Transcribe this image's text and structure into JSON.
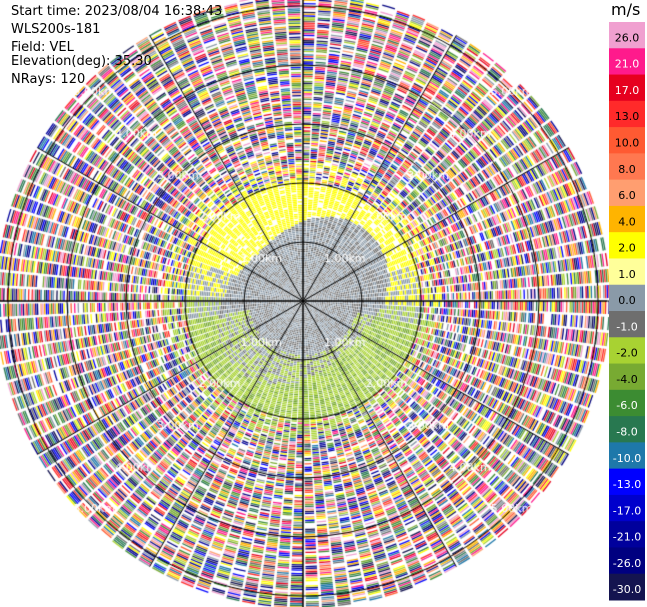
{
  "header": {
    "start_time": "Start time: 2023/08/04 16:38:43",
    "instrument": "WLS200s-181",
    "field": "Field: VEL",
    "elevation": "Elevation(deg): 35.30",
    "nrays": "NRays: 120"
  },
  "colorbar": {
    "unit": "m/s",
    "ticks": [
      "26.0",
      "21.0",
      "17.0",
      "13.0",
      "10.0",
      "8.0",
      "6.0",
      "4.0",
      "2.0",
      "1.0",
      "0.0",
      "-1.0",
      "-2.0",
      "-4.0",
      "-6.0",
      "-8.0",
      "-10.0",
      "-13.0",
      "-17.0",
      "-21.0",
      "-26.0",
      "-30.0"
    ],
    "colors": [
      "#f0a0d0",
      "#ff1a8c",
      "#e6001f",
      "#ff2a2a",
      "#ff5a32",
      "#ff7850",
      "#ff9e70",
      "#ffb400",
      "#ffff00",
      "#ffff9a",
      "#8a9aa8",
      "#6e6e6e",
      "#a8d232",
      "#78aa32",
      "#3c8c32",
      "#287850",
      "#1e78aa",
      "#0000ff",
      "#0000cc",
      "#00009c",
      "#000080",
      "#141450"
    ]
  },
  "chart_data": {
    "type": "ppi",
    "field": "VEL",
    "unit": "m/s",
    "nrays": 120,
    "elevation_deg": 35.3,
    "range_rings_km": [
      1.0,
      2.0,
      3.0,
      4.0,
      5.0
    ],
    "ring_labels": {
      "r1": "1.00km",
      "r2": "2.00km",
      "r3": "3.00km",
      "r4": "4.00km",
      "r5": "5.00km"
    },
    "velocity_scale": [
      -30.0,
      26.0
    ],
    "regions": [
      {
        "range_km": [
          0.0,
          0.9
        ],
        "description_value": "0.0 to -1.0"
      },
      {
        "range_km": [
          0.9,
          2.0
        ],
        "north_value": 2.0,
        "south_value": -2.0
      },
      {
        "range_km": [
          2.0,
          5.2
        ],
        "description_value": "noisy"
      }
    ]
  }
}
